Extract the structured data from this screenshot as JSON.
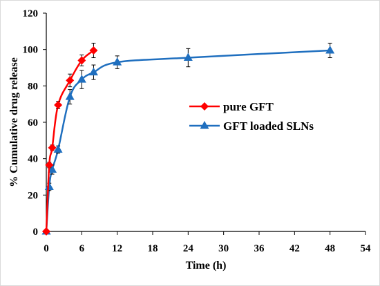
{
  "chart_data": {
    "type": "line",
    "xlabel": "Time (h)",
    "ylabel": "% Cumulative drug release",
    "xlim": [
      0,
      54
    ],
    "ylim": [
      0,
      120
    ],
    "x_ticks": [
      0,
      6,
      12,
      18,
      24,
      30,
      36,
      42,
      48,
      54
    ],
    "y_ticks": [
      0,
      20,
      40,
      60,
      80,
      100,
      120
    ],
    "grid": false,
    "legend_position": "center-right",
    "series": [
      {
        "name": "pure GFT",
        "color": "#ff0000",
        "marker": "diamond",
        "points": [
          {
            "x": 0,
            "y": 0,
            "err": 0
          },
          {
            "x": 0.5,
            "y": 36.5,
            "err": 1.5
          },
          {
            "x": 1,
            "y": 46,
            "err": 1.5
          },
          {
            "x": 2,
            "y": 69.5,
            "err": 2
          },
          {
            "x": 4,
            "y": 83,
            "err": 3.5
          },
          {
            "x": 6,
            "y": 94,
            "err": 3
          },
          {
            "x": 8,
            "y": 99.5,
            "err": 4
          }
        ]
      },
      {
        "name": "GFT loaded SLNs",
        "color": "#1f6fbf",
        "marker": "triangle",
        "points": [
          {
            "x": 0,
            "y": 0,
            "err": 0
          },
          {
            "x": 0.5,
            "y": 24.5,
            "err": 2
          },
          {
            "x": 1,
            "y": 34,
            "err": 2.5
          },
          {
            "x": 2,
            "y": 45,
            "err": 2
          },
          {
            "x": 4,
            "y": 74,
            "err": 4
          },
          {
            "x": 6,
            "y": 83.5,
            "err": 5
          },
          {
            "x": 8,
            "y": 87.5,
            "err": 4
          },
          {
            "x": 12,
            "y": 93,
            "err": 3.5
          },
          {
            "x": 24,
            "y": 95.5,
            "err": 5
          },
          {
            "x": 48,
            "y": 99.5,
            "err": 4
          }
        ]
      }
    ]
  }
}
